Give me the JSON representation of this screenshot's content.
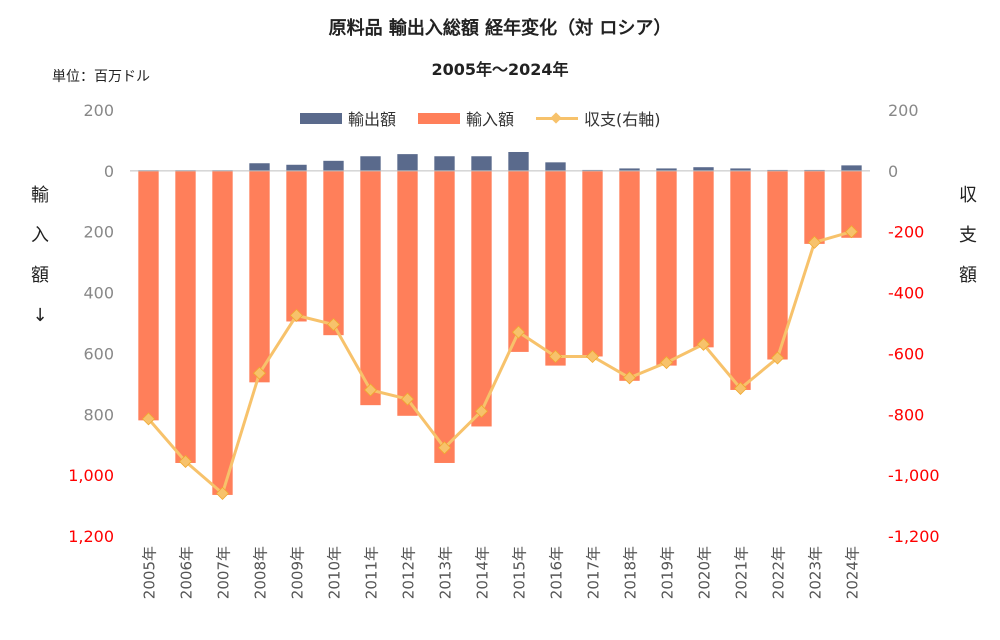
{
  "title": "原料品 輸出入総額 経年変化（対 ロシア）",
  "subtitle": "2005年〜2024年",
  "unit_label": "単位：百万ドル",
  "left_axis_label": [
    "輸",
    "入",
    "額",
    "↓"
  ],
  "right_axis_label": [
    "収",
    "支",
    "額"
  ],
  "legend": {
    "export": "輸出額",
    "import": "輸入額",
    "balance": "収支(右軸)"
  },
  "colors": {
    "export": "#5a6a8c",
    "import": "#ff7f5a",
    "balance": "#f7c26b",
    "balance_marker": "#f7c26b",
    "neg_tick": "#ff0000",
    "pos_tick": "#888888"
  },
  "chart_data": {
    "type": "bar",
    "title": "原料品 輸出入総額 経年変化（対 ロシア）",
    "subtitle": "2005年〜2024年",
    "categories": [
      "2005年",
      "2006年",
      "2007年",
      "2008年",
      "2009年",
      "2010年",
      "2011年",
      "2012年",
      "2013年",
      "2014年",
      "2015年",
      "2016年",
      "2017年",
      "2018年",
      "2019年",
      "2020年",
      "2021年",
      "2022年",
      "2023年",
      "2024年"
    ],
    "series": [
      {
        "name": "輸出額",
        "axis": "left",
        "type": "bar",
        "values": [
          2,
          2,
          2,
          25,
          20,
          33,
          48,
          55,
          48,
          48,
          62,
          28,
          3,
          8,
          8,
          12,
          8,
          3,
          3,
          18
        ]
      },
      {
        "name": "輸入額",
        "axis": "left",
        "type": "bar",
        "values": [
          820,
          960,
          1065,
          695,
          495,
          540,
          770,
          805,
          960,
          840,
          595,
          640,
          610,
          690,
          640,
          580,
          720,
          620,
          240,
          220
        ]
      },
      {
        "name": "収支(右軸)",
        "axis": "right",
        "type": "line",
        "values": [
          -815,
          -955,
          -1060,
          -665,
          -475,
          -505,
          -720,
          -750,
          -910,
          -790,
          -530,
          -610,
          -610,
          -680,
          -630,
          -570,
          -715,
          -615,
          -235,
          -200
        ]
      }
    ],
    "left_axis": {
      "range": [
        -200,
        1200
      ],
      "inverted": true,
      "ticks": [
        {
          "value": -200,
          "label": "200"
        },
        {
          "value": 0,
          "label": "0"
        },
        {
          "value": 200,
          "label": "200"
        },
        {
          "value": 400,
          "label": "400"
        },
        {
          "value": 600,
          "label": "600"
        },
        {
          "value": 800,
          "label": "800"
        },
        {
          "value": 1000,
          "label": "1,000"
        },
        {
          "value": 1200,
          "label": "1,200"
        }
      ]
    },
    "right_axis": {
      "range": [
        -1200,
        200
      ],
      "ticks": [
        {
          "value": 200,
          "label": "200"
        },
        {
          "value": 0,
          "label": "0"
        },
        {
          "value": -200,
          "label": "-200"
        },
        {
          "value": -400,
          "label": "-400"
        },
        {
          "value": -600,
          "label": "-600"
        },
        {
          "value": -800,
          "label": "-800"
        },
        {
          "value": -1000,
          "label": "-1,000"
        },
        {
          "value": -1200,
          "label": "-1,200"
        }
      ]
    },
    "legend_position": "top-center",
    "grid": false
  }
}
